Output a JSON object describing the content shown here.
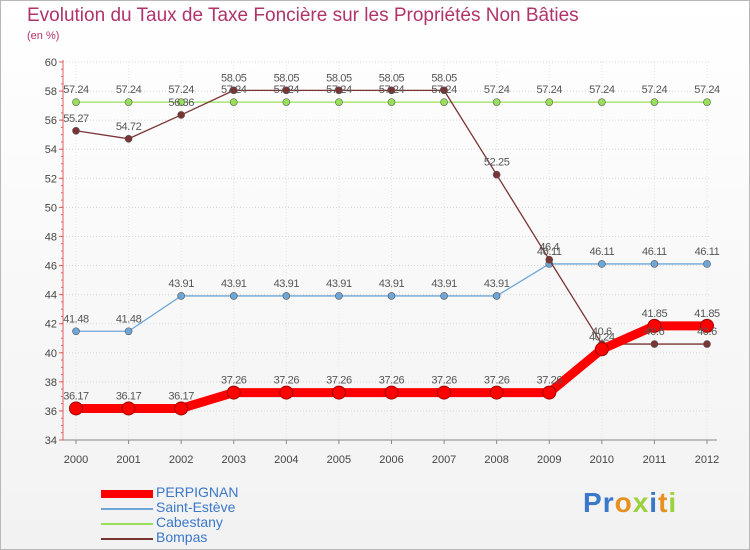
{
  "chart_data": {
    "type": "line",
    "title": "Evolution du Taux de Taxe Foncière sur les Propriétés Non Bâties",
    "ylabel": "(en %)",
    "xlabel": "",
    "categories": [
      "2000",
      "2001",
      "2002",
      "2003",
      "2004",
      "2005",
      "2006",
      "2007",
      "2008",
      "2009",
      "2010",
      "2011",
      "2012"
    ],
    "ylim": [
      34,
      60
    ],
    "yticks": [
      34,
      36,
      38,
      40,
      42,
      44,
      46,
      48,
      50,
      52,
      54,
      56,
      58,
      60
    ],
    "grid": true,
    "legend_position": "bottom-left",
    "series": [
      {
        "name": "PERPIGNAN",
        "color": "#ff0000",
        "values": [
          36.17,
          36.17,
          36.17,
          37.26,
          37.26,
          37.26,
          37.26,
          37.26,
          37.26,
          37.26,
          40.24,
          41.85,
          41.85
        ],
        "labels": [
          "36.17",
          "36.17",
          "36.17",
          "37.26",
          "37.26",
          "37.26",
          "37.26",
          "37.26",
          "37.26",
          "37.26",
          "40.24",
          "41.85",
          "41.85"
        ]
      },
      {
        "name": "Saint-Estève",
        "color": "#6ea6d8",
        "values": [
          41.48,
          41.48,
          43.91,
          43.91,
          43.91,
          43.91,
          43.91,
          43.91,
          43.91,
          46.11,
          46.11,
          46.11,
          46.11
        ],
        "labels": [
          "41.48",
          "41.48",
          "43.91",
          "43.91",
          "43.91",
          "43.91",
          "43.91",
          "43.91",
          "43.91",
          "46.11",
          "46.11",
          "46.11",
          "46.11"
        ]
      },
      {
        "name": "Cabestany",
        "color": "#99e05a",
        "values": [
          57.24,
          57.24,
          57.24,
          57.24,
          57.24,
          57.24,
          57.24,
          57.24,
          57.24,
          57.24,
          57.24,
          57.24,
          57.24
        ],
        "labels": [
          "57.24",
          "57.24",
          "57.24",
          "57.24",
          "57.24",
          "57.24",
          "57.24",
          "57.24",
          "57.24",
          "57.24",
          "57.24",
          "57.24",
          "57.24"
        ]
      },
      {
        "name": "Bompas",
        "color": "#7b3434",
        "values": [
          55.27,
          54.72,
          56.36,
          58.05,
          58.05,
          58.05,
          58.05,
          58.05,
          52.25,
          46.4,
          40.6,
          40.6,
          40.6
        ],
        "labels": [
          "55.27",
          "54.72",
          "56.36",
          "58.05",
          "58.05",
          "58.05",
          "58.05",
          "58.05",
          "52.25",
          "46.4",
          "40.6",
          "40.6",
          "40.6"
        ]
      }
    ]
  },
  "branding": {
    "logo_letters": [
      "P",
      "r",
      "o",
      "x",
      "i",
      "t",
      "i"
    ],
    "logo_colors": [
      "#3a78c9",
      "#3a78c9",
      "#e8901f",
      "#9ad13c",
      "#3a78c9",
      "#e8901f",
      "#9ad13c"
    ]
  }
}
